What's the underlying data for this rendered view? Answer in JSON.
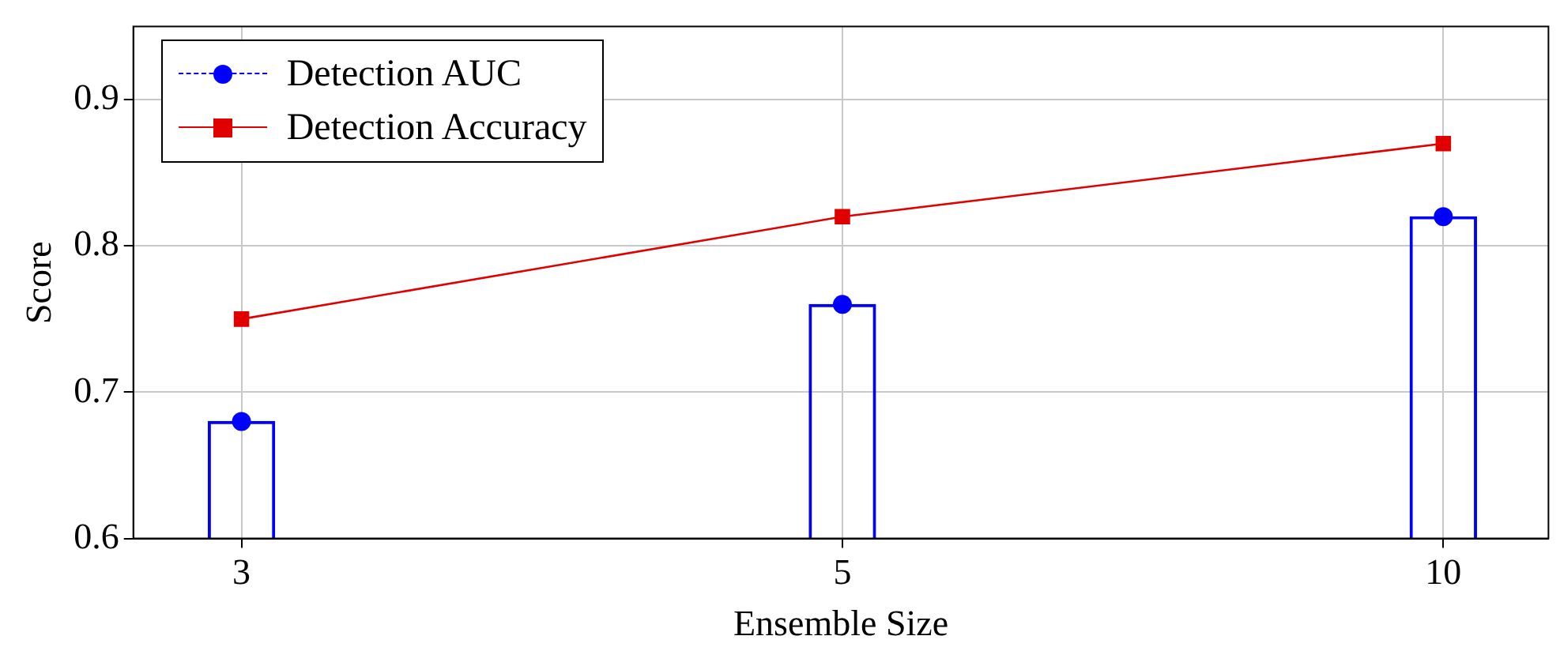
{
  "chart_data": {
    "type": "bar",
    "xlabel": "Ensemble Size",
    "ylabel": "Score",
    "categories": [
      "3",
      "5",
      "10"
    ],
    "series": [
      {
        "name": "Detection AUC",
        "color": "#0000ff",
        "marker": "circle",
        "values": [
          0.68,
          0.76,
          0.82
        ]
      },
      {
        "type": "scatter",
        "color": "#0000ff",
        "marker": "circle",
        "x": [
          "3",
          "5",
          "10"
        ],
        "values": [
          0.68,
          0.76,
          0.82
        ]
      },
      {
        "name": "Detection Accuracy",
        "type": "line",
        "color": "#e00000",
        "marker": "square",
        "values": [
          0.75,
          0.82,
          0.87
        ]
      }
    ],
    "ylim": [
      0.6,
      0.95
    ],
    "yticks": [
      0.6,
      0.7,
      0.8,
      0.9
    ],
    "grid": true,
    "legend": "top left"
  }
}
